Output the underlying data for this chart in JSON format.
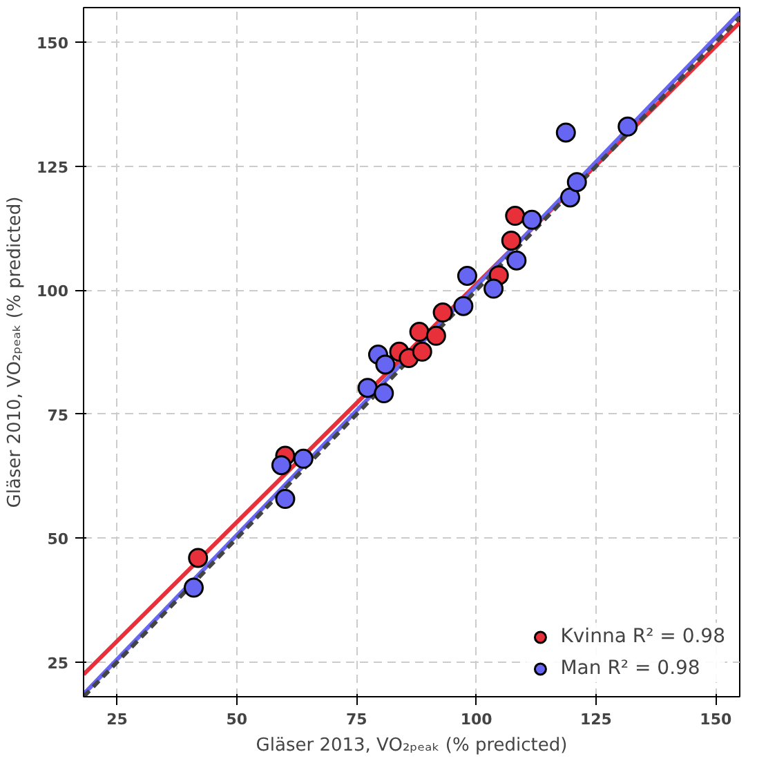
{
  "chart_data": {
    "type": "scatter",
    "xlabel": "Gläser 2013, VO₂ₚₑₐₖ (% predicted)",
    "ylabel": "Gläser 2010, VO₂ₚₑₐₖ (% predicted)",
    "xlim": [
      18,
      155
    ],
    "ylim": [
      18,
      157
    ],
    "xticks": [
      25,
      50,
      75,
      100,
      125,
      150
    ],
    "yticks": [
      25,
      50,
      75,
      100,
      125,
      150
    ],
    "grid": true,
    "legend": "bottom right",
    "series": [
      {
        "name": "Kvinna R² = 0.98",
        "color": "#e8303a",
        "marker": "circle",
        "x": [
          41.9,
          60.1,
          83.9,
          85.9,
          88.1,
          91.6,
          88.7,
          93,
          104.7,
          107.3,
          108.1
        ],
        "values": [
          46,
          66.6,
          87.6,
          86.3,
          91.6,
          90.8,
          87.6,
          95.5,
          103,
          110,
          115
        ]
      },
      {
        "name": "Man R² = 0.98",
        "color": "#6666f2",
        "marker": "circle",
        "x": [
          41,
          59.3,
          60.1,
          63.9,
          77.3,
          79.5,
          81,
          80.7,
          97.3,
          98.1,
          103.6,
          108.4,
          111.6,
          118.7,
          119.6,
          121,
          131.6
        ],
        "values": [
          40,
          64.7,
          57.9,
          66,
          80.3,
          87,
          85,
          79.2,
          96.8,
          102.9,
          100.3,
          106,
          114.2,
          131.8,
          118.7,
          121.8,
          133
        ]
      },
      {
        "type": "line",
        "color": "#e8303a",
        "line_style": "solid",
        "x": [
          18,
          155
        ],
        "values": [
          22.5,
          154
        ]
      },
      {
        "type": "line",
        "color": "#6666f2",
        "line_style": "solid",
        "x": [
          18,
          155
        ],
        "values": [
          18.5,
          156
        ]
      },
      {
        "type": "line",
        "color": "#444444",
        "line_style": "dashed",
        "x": [
          18,
          155
        ],
        "values": [
          18,
          155
        ]
      }
    ]
  }
}
